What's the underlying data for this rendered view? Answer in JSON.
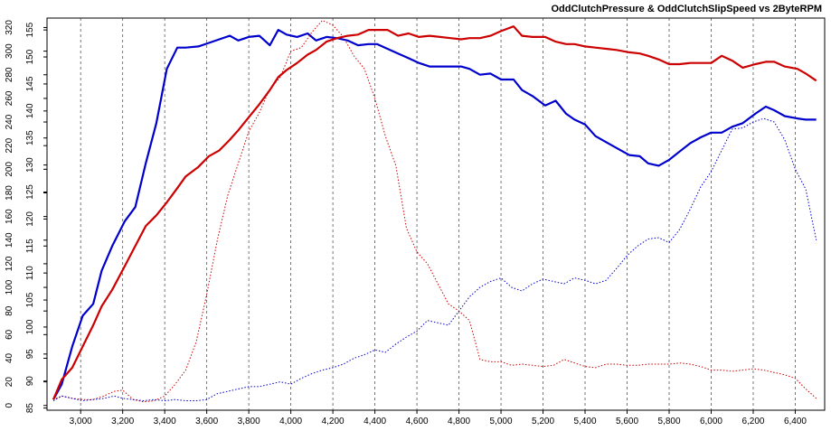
{
  "chart_data": {
    "type": "line",
    "title": "OddClutchPressure & OddClutchSlipSpeed vs 2ByteRPM",
    "xlabel": "",
    "ylabel": "",
    "xlim": [
      2840,
      6540
    ],
    "x_ticks": [
      "3,000",
      "3,200",
      "3,400",
      "3,600",
      "3,800",
      "4,000",
      "4,200",
      "4,400",
      "4,600",
      "4,800",
      "5,000",
      "5,200",
      "5,400",
      "5,600",
      "5,800",
      "6,000",
      "6,200",
      "6,400"
    ],
    "x_tick_values": [
      3000,
      3200,
      3400,
      3600,
      3800,
      4000,
      4200,
      4400,
      4600,
      4800,
      5000,
      5200,
      5400,
      5600,
      5800,
      6000,
      6200,
      6400
    ],
    "y_left_ticks": [
      "0",
      "20",
      "40",
      "60",
      "80",
      "100",
      "120",
      "140",
      "160",
      "180",
      "200",
      "220",
      "240",
      "260",
      "280",
      "300",
      "320"
    ],
    "y_left_tick_values": [
      0,
      20,
      40,
      60,
      80,
      100,
      120,
      140,
      160,
      180,
      200,
      220,
      240,
      260,
      280,
      300,
      320
    ],
    "y_left_range": [
      -4,
      328
    ],
    "y_right_ticks": [
      "85",
      "90",
      "95",
      "100",
      "105",
      "110",
      "115",
      "120",
      "125",
      "130",
      "135",
      "140",
      "145",
      "150",
      "155"
    ],
    "y_right_tick_values": [
      85,
      90,
      95,
      100,
      105,
      110,
      115,
      120,
      125,
      130,
      135,
      140,
      145,
      150,
      155
    ],
    "y_right_range": [
      84.6,
      157.2
    ],
    "grid": "vertical dashed",
    "series": [
      {
        "axis": "left",
        "color": "#0000cc",
        "style": "solid",
        "width": 2.2,
        "x": [
          2870,
          2910,
          2960,
          3010,
          3060,
          3100,
          3150,
          3210,
          3260,
          3310,
          3360,
          3410,
          3460,
          3500,
          3560,
          3610,
          3660,
          3710,
          3750,
          3800,
          3850,
          3900,
          3940,
          3980,
          4030,
          4080,
          4120,
          4170,
          4220,
          4270,
          4320,
          4370,
          4410,
          4460,
          4510,
          4560,
          4610,
          4660,
          4710,
          4760,
          4810,
          4850,
          4900,
          4950,
          5000,
          5060,
          5100,
          5150,
          5210,
          5260,
          5310,
          5350,
          5400,
          5450,
          5500,
          5550,
          5610,
          5660,
          5700,
          5750,
          5800,
          5850,
          5900,
          5950,
          6000,
          6050,
          6100,
          6150,
          6210,
          6260,
          6300,
          6350,
          6410,
          6450,
          6500
        ],
        "y": [
          5,
          18,
          50,
          76,
          86,
          114,
          135,
          156,
          168,
          205,
          239,
          285,
          303,
          303,
          304,
          307,
          310,
          313,
          309,
          312,
          313,
          305,
          318,
          314,
          312,
          315,
          309,
          312,
          311,
          309,
          305,
          306,
          306,
          302,
          298,
          294,
          290,
          287,
          287,
          287,
          287,
          285,
          280,
          281,
          276,
          276,
          267,
          262,
          254,
          258,
          247,
          242,
          238,
          228,
          223,
          218,
          212,
          211,
          205,
          203,
          208,
          215,
          222,
          227,
          231,
          231,
          236,
          239,
          247,
          253,
          250,
          245,
          243,
          242,
          242
        ]
      },
      {
        "axis": "left",
        "color": "#cc0000",
        "style": "solid",
        "width": 2.2,
        "x": [
          2870,
          2910,
          2960,
          3010,
          3060,
          3100,
          3150,
          3210,
          3260,
          3310,
          3360,
          3410,
          3460,
          3500,
          3560,
          3610,
          3660,
          3710,
          3750,
          3800,
          3850,
          3900,
          3940,
          3980,
          4030,
          4080,
          4120,
          4170,
          4220,
          4270,
          4320,
          4370,
          4410,
          4460,
          4510,
          4560,
          4610,
          4660,
          4710,
          4760,
          4810,
          4850,
          4900,
          4950,
          5000,
          5060,
          5100,
          5150,
          5210,
          5260,
          5310,
          5350,
          5400,
          5450,
          5500,
          5550,
          5610,
          5660,
          5700,
          5750,
          5800,
          5850,
          5900,
          5950,
          6000,
          6050,
          6100,
          6150,
          6210,
          6260,
          6300,
          6350,
          6410,
          6450,
          6500
        ],
        "y": [
          5,
          22,
          32,
          50,
          68,
          84,
          98,
          118,
          135,
          152,
          161,
          172,
          184,
          194,
          202,
          211,
          216,
          225,
          233,
          244,
          255,
          267,
          278,
          284,
          290,
          297,
          301,
          308,
          311,
          313,
          314,
          318,
          318,
          318,
          313,
          315,
          312,
          313,
          312,
          311,
          310,
          311,
          311,
          313,
          317,
          321,
          313,
          312,
          312,
          308,
          306,
          306,
          304,
          303,
          302,
          301,
          299,
          298,
          296,
          293,
          289,
          289,
          290,
          290,
          290,
          296,
          292,
          286,
          289,
          291,
          291,
          287,
          285,
          281,
          275
        ]
      },
      {
        "axis": "left",
        "color": "#cc0000",
        "style": "dotted",
        "width": 1,
        "x": [
          2870,
          2910,
          2960,
          3010,
          3060,
          3110,
          3160,
          3200,
          3250,
          3300,
          3350,
          3400,
          3450,
          3500,
          3550,
          3600,
          3650,
          3700,
          3750,
          3800,
          3850,
          3900,
          3950,
          4000,
          4050,
          4100,
          4150,
          4200,
          4250,
          4300,
          4350,
          4400,
          4450,
          4500,
          4550,
          4600,
          4650,
          4700,
          4750,
          4800,
          4850,
          4900,
          4950,
          5000,
          5050,
          5100,
          5150,
          5200,
          5250,
          5300,
          5350,
          5400,
          5450,
          5500,
          5550,
          5600,
          5650,
          5700,
          5750,
          5800,
          5850,
          5900,
          5950,
          6000,
          6050,
          6100,
          6150,
          6200,
          6250,
          6300,
          6350,
          6400,
          6450,
          6500
        ],
        "y": [
          5,
          8,
          6,
          5,
          5,
          8,
          12,
          13,
          5,
          3,
          4,
          8,
          18,
          30,
          54,
          94,
          140,
          178,
          205,
          232,
          248,
          268,
          278,
          300,
          303,
          316,
          326,
          322,
          312,
          296,
          285,
          260,
          228,
          203,
          150,
          130,
          120,
          103,
          86,
          80,
          72,
          39,
          37,
          37,
          34,
          35,
          34,
          33,
          34,
          39,
          36,
          33,
          32,
          35,
          35,
          34,
          34,
          35,
          35,
          35,
          36,
          35,
          33,
          30,
          30,
          29,
          30,
          31,
          30,
          28,
          26,
          23,
          14,
          6
        ]
      },
      {
        "axis": "left",
        "color": "#0000cc",
        "style": "dotted",
        "width": 1,
        "x": [
          2870,
          2910,
          2960,
          3010,
          3060,
          3110,
          3160,
          3200,
          3250,
          3300,
          3350,
          3400,
          3450,
          3500,
          3550,
          3600,
          3650,
          3700,
          3750,
          3800,
          3850,
          3900,
          3950,
          4000,
          4050,
          4100,
          4150,
          4200,
          4250,
          4300,
          4350,
          4400,
          4450,
          4500,
          4550,
          4600,
          4650,
          4700,
          4750,
          4800,
          4850,
          4900,
          4950,
          5000,
          5050,
          5100,
          5150,
          5200,
          5250,
          5300,
          5350,
          5400,
          5450,
          5500,
          5550,
          5600,
          5650,
          5700,
          5750,
          5800,
          5850,
          5900,
          5950,
          6000,
          6050,
          6100,
          6150,
          6200,
          6250,
          6300,
          6350,
          6400,
          6450,
          6500
        ],
        "y": [
          4,
          8,
          6,
          4,
          5,
          6,
          8,
          6,
          5,
          4,
          5,
          4,
          5,
          4,
          4,
          5,
          10,
          12,
          14,
          16,
          16,
          18,
          20,
          18,
          23,
          27,
          30,
          32,
          35,
          40,
          43,
          47,
          45,
          52,
          58,
          63,
          72,
          70,
          68,
          80,
          92,
          100,
          105,
          108,
          100,
          97,
          103,
          107,
          105,
          103,
          108,
          106,
          103,
          106,
          116,
          127,
          135,
          141,
          142,
          138,
          149,
          166,
          185,
          198,
          216,
          234,
          235,
          240,
          243,
          240,
          225,
          200,
          183,
          140
        ]
      }
    ]
  }
}
